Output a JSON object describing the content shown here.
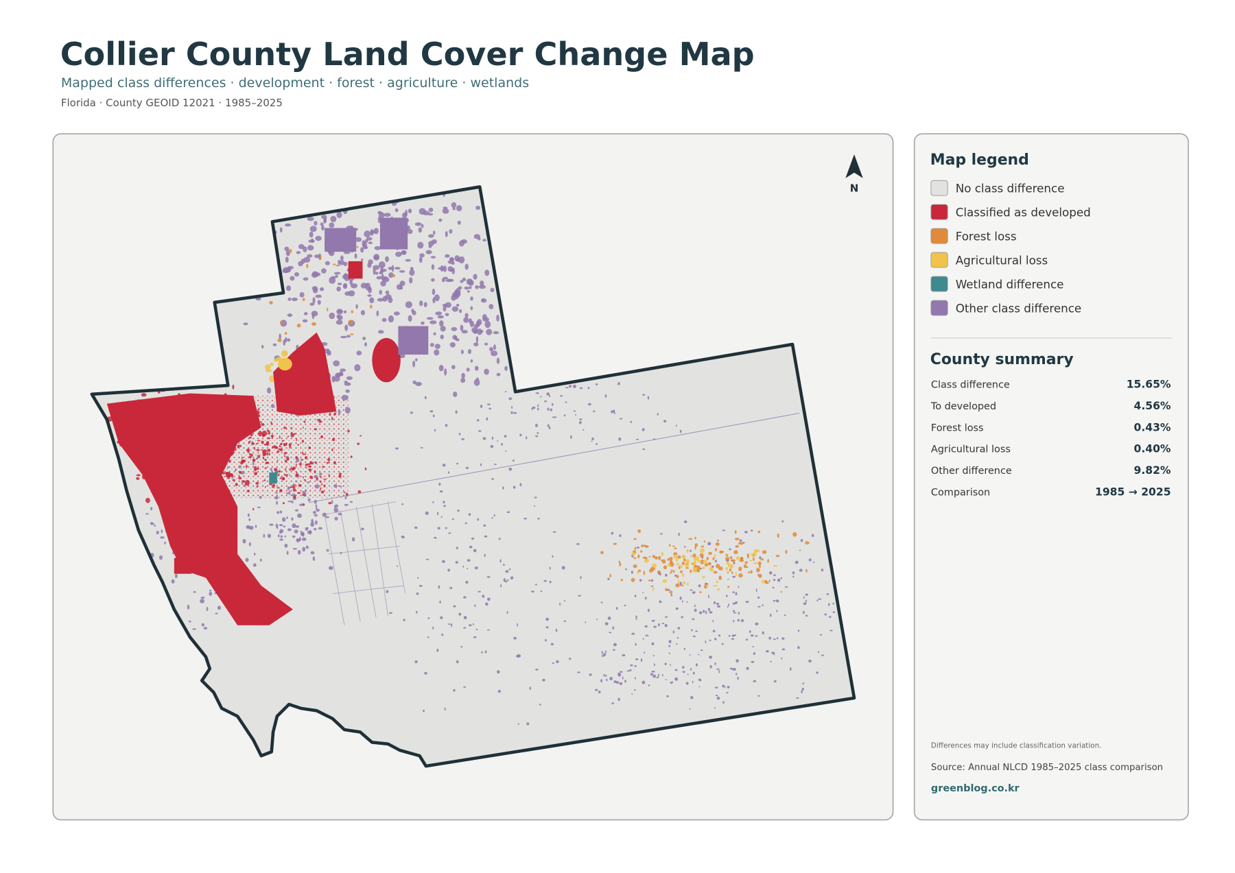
{
  "header": {
    "title": "Collier County Land Cover Change Map",
    "subtitle": "Mapped class differences · development · forest · agriculture · wetlands",
    "meta": "Florida · County GEOID 12021 · 1985–2025"
  },
  "map": {
    "north_label": "N"
  },
  "legend": {
    "title": "Map legend",
    "items": [
      {
        "label": "No class difference",
        "color": "#e2e3e0"
      },
      {
        "label": "Classified as developed",
        "color": "#c8283a"
      },
      {
        "label": "Forest loss",
        "color": "#e08a3a"
      },
      {
        "label": "Agricultural loss",
        "color": "#f0c44a"
      },
      {
        "label": "Wetland difference",
        "color": "#3d8a8f"
      },
      {
        "label": "Other class difference",
        "color": "#9278ad"
      }
    ]
  },
  "summary": {
    "title": "County summary",
    "rows": [
      {
        "label": "Class difference",
        "value": "15.65%"
      },
      {
        "label": "To developed",
        "value": "4.56%"
      },
      {
        "label": "Forest loss",
        "value": "0.43%"
      },
      {
        "label": "Agricultural loss",
        "value": "0.40%"
      },
      {
        "label": "Other difference",
        "value": "9.82%"
      },
      {
        "label": "Comparison",
        "value": "1985 → 2025"
      }
    ]
  },
  "notes": {
    "caveat": "Differences may include classification variation.",
    "source": "Source: Annual NLCD 1985–2025 class comparison",
    "credit": "greenblog.co.kr"
  }
}
